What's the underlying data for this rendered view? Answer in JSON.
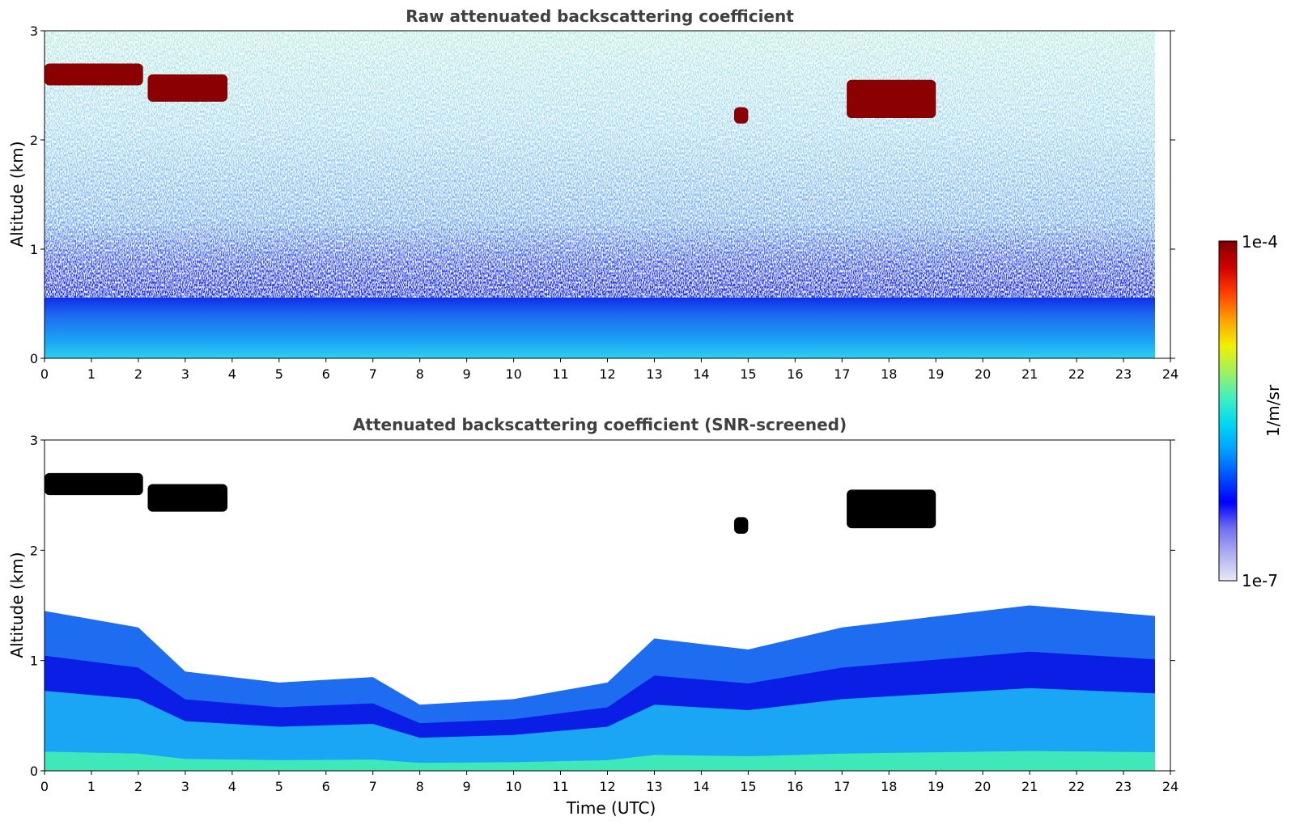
{
  "chart_data": [
    {
      "type": "heatmap",
      "title": "Raw attenuated backscattering coefficient",
      "xlabel": "",
      "ylabel": "Altitude (km)",
      "xlim": [
        0,
        24
      ],
      "ylim": [
        0,
        3
      ],
      "xticks": [
        "0",
        "1",
        "2",
        "3",
        "4",
        "5",
        "6",
        "7",
        "8",
        "9",
        "10",
        "11",
        "12",
        "13",
        "14",
        "15",
        "16",
        "17",
        "18",
        "19",
        "20",
        "21",
        "22",
        "23",
        "24"
      ],
      "yticks": [
        "0",
        "1",
        "2",
        "3"
      ],
      "data_end_time": 23.8,
      "colorscale": "jet (logarithmic)",
      "cloud_layers": [
        {
          "t0": 0.0,
          "t1": 2.1,
          "alt": [
            2.5,
            2.7
          ],
          "level": "1e-4"
        },
        {
          "t0": 2.2,
          "t1": 3.9,
          "alt": [
            2.35,
            2.6
          ],
          "level": "1e-4"
        },
        {
          "t0": 14.7,
          "t1": 15.0,
          "alt": [
            2.15,
            2.3
          ],
          "level": "1e-4"
        },
        {
          "t0": 17.1,
          "t1": 19.0,
          "alt": [
            2.2,
            2.55
          ],
          "level": "1e-4"
        }
      ],
      "boundary_layer_top_km": 0.5
    },
    {
      "type": "heatmap",
      "title": "Attenuated backscattering coefficient (SNR-screened)",
      "xlabel": "Time (UTC)",
      "ylabel": "Altitude (km)",
      "xlim": [
        0,
        24
      ],
      "ylim": [
        0,
        3
      ],
      "xticks": [
        "0",
        "1",
        "2",
        "3",
        "4",
        "5",
        "6",
        "7",
        "8",
        "9",
        "10",
        "11",
        "12",
        "13",
        "14",
        "15",
        "16",
        "17",
        "18",
        "19",
        "20",
        "21",
        "22",
        "23",
        "24"
      ],
      "yticks": [
        "0",
        "1",
        "2",
        "3"
      ],
      "data_end_time": 23.8,
      "colorscale": "jet (logarithmic)",
      "screened_above_km": [
        {
          "t": 0,
          "alt": 1.45
        },
        {
          "t": 2,
          "alt": 1.3
        },
        {
          "t": 3,
          "alt": 0.9
        },
        {
          "t": 5,
          "alt": 0.8
        },
        {
          "t": 7,
          "alt": 0.85
        },
        {
          "t": 8,
          "alt": 0.6
        },
        {
          "t": 10,
          "alt": 0.65
        },
        {
          "t": 12,
          "alt": 0.8
        },
        {
          "t": 13,
          "alt": 1.2
        },
        {
          "t": 15,
          "alt": 1.1
        },
        {
          "t": 17,
          "alt": 1.3
        },
        {
          "t": 19,
          "alt": 1.4
        },
        {
          "t": 21,
          "alt": 1.5
        },
        {
          "t": 23.8,
          "alt": 1.4
        }
      ]
    }
  ],
  "colorbar": {
    "label": "1/m/sr",
    "max_label": "1e-4",
    "min_label": "1e-7",
    "colors": [
      "#e8e8f8",
      "#b0b0f0",
      "#7070f0",
      "#0000ff",
      "#0050ff",
      "#00a0ff",
      "#00d8f0",
      "#40f0c0",
      "#a0f060",
      "#f0f000",
      "#ffa000",
      "#ff4000",
      "#d00000",
      "#800000"
    ]
  },
  "palette": {
    "deep_blue": "#0a1ee6",
    "mid_blue": "#1e6cf0",
    "light_blue": "#1aa6f5",
    "cyan_green": "#3ee8b8",
    "cloud_dark_red": "#8b0000",
    "cloud_black": "#000000"
  }
}
